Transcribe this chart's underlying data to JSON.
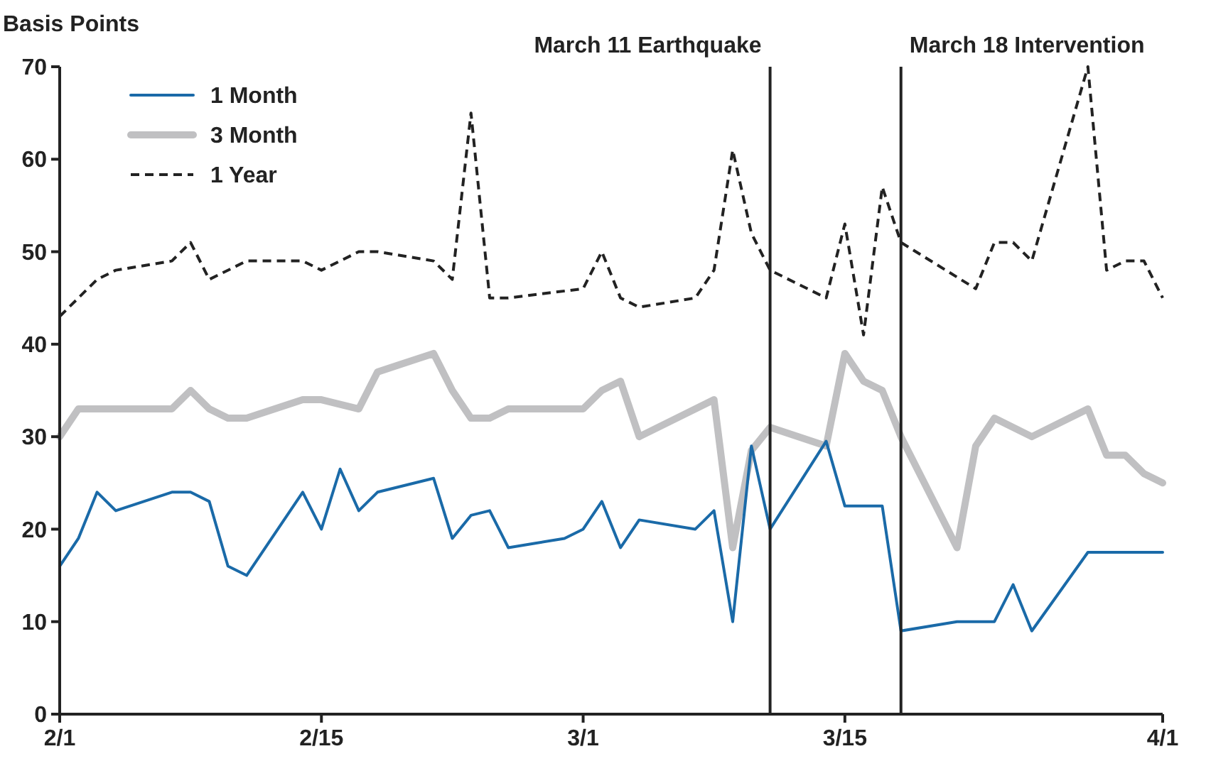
{
  "chart_data": {
    "type": "line",
    "ylabel": "Basis Points",
    "ylim": [
      0,
      70
    ],
    "yticks": [
      0,
      10,
      20,
      30,
      40,
      50,
      60,
      70
    ],
    "xlim": [
      "--02-01",
      "--04-01"
    ],
    "xticks": [
      {
        "value": "--02-01",
        "label": "2/1"
      },
      {
        "value": "--02-15",
        "label": "2/15"
      },
      {
        "value": "--03-01",
        "label": "3/1"
      },
      {
        "value": "--03-15",
        "label": "3/15"
      },
      {
        "value": "--04-01",
        "label": "4/1"
      }
    ],
    "grid": false,
    "legend": "top left",
    "marker": "none",
    "ref_lines": [
      {
        "axis": "x",
        "value": "--03-11",
        "label": "March 11 Earthquake",
        "color": "#222222"
      },
      {
        "axis": "x",
        "value": "--03-18",
        "label": "March 18 Intervention",
        "color": "#222222"
      }
    ],
    "series": [
      {
        "name": "1 Month",
        "color": "#1a6aa8",
        "line_style": "solid",
        "x": [
          "--02-01",
          "--02-02",
          "--02-03",
          "--02-04",
          "--02-07",
          "--02-08",
          "--02-09",
          "--02-10",
          "--02-11",
          "--02-14",
          "--02-15",
          "--02-16",
          "--02-17",
          "--02-18",
          "--02-21",
          "--02-22",
          "--02-23",
          "--02-24",
          "--02-25",
          "--02-28",
          "--03-01",
          "--03-02",
          "--03-03",
          "--03-04",
          "--03-07",
          "--03-08",
          "--03-09",
          "--03-10",
          "--03-11",
          "--03-14",
          "--03-15",
          "--03-16",
          "--03-17",
          "--03-18",
          "--03-21",
          "--03-23",
          "--03-24",
          "--03-25",
          "--03-28",
          "--04-01"
        ],
        "values": [
          16,
          19,
          24,
          22,
          24,
          24,
          23,
          16,
          15,
          24,
          20,
          26.5,
          22,
          24,
          25.5,
          19,
          21.5,
          22,
          18,
          19,
          20,
          23,
          18,
          21,
          20,
          22,
          10,
          29,
          20,
          29.5,
          22.5,
          22.5,
          22.5,
          9,
          10,
          10,
          14,
          9,
          17.5,
          17.5
        ]
      },
      {
        "name": "3 Month",
        "color": "#c0c0c2",
        "line_style": "solid",
        "x": [
          "--02-01",
          "--02-02",
          "--02-07",
          "--02-08",
          "--02-09",
          "--02-10",
          "--02-11",
          "--02-14",
          "--02-15",
          "--02-17",
          "--02-18",
          "--02-21",
          "--02-22",
          "--02-23",
          "--02-24",
          "--02-25",
          "--03-01",
          "--03-02",
          "--03-03",
          "--03-04",
          "--03-08",
          "--03-09",
          "--03-10",
          "--03-11",
          "--03-14",
          "--03-15",
          "--03-16",
          "--03-17",
          "--03-18",
          "--03-21",
          "--03-22",
          "--03-23",
          "--03-25",
          "--03-28",
          "--03-29",
          "--03-30",
          "--03-31",
          "--04-01"
        ],
        "values": [
          30,
          33,
          33,
          35,
          33,
          32,
          32,
          34,
          34,
          33,
          37,
          39,
          35,
          32,
          32,
          33,
          33,
          35,
          36,
          30,
          34,
          18,
          28.5,
          31,
          29,
          39,
          36,
          35,
          30,
          18,
          29,
          32,
          30,
          33,
          28,
          28,
          26,
          25
        ]
      },
      {
        "name": "1 Year",
        "color": "#222222",
        "line_style": "dashed",
        "x": [
          "--02-01",
          "--02-02",
          "--02-03",
          "--02-04",
          "--02-07",
          "--02-08",
          "--02-09",
          "--02-11",
          "--02-14",
          "--02-15",
          "--02-17",
          "--02-18",
          "--02-21",
          "--02-22",
          "--02-23",
          "--02-24",
          "--02-25",
          "--03-01",
          "--03-02",
          "--03-03",
          "--03-04",
          "--03-07",
          "--03-08",
          "--03-09",
          "--03-10",
          "--03-11",
          "--03-14",
          "--03-15",
          "--03-16",
          "--03-17",
          "--03-18",
          "--03-22",
          "--03-23",
          "--03-24",
          "--03-25",
          "--03-28",
          "--03-29",
          "--03-30",
          "--03-31",
          "--04-01"
        ],
        "values": [
          43,
          45,
          47,
          48,
          49,
          51,
          47,
          49,
          49,
          48,
          50,
          50,
          49,
          47,
          65,
          45,
          45,
          46,
          50,
          45,
          44,
          45,
          48,
          61,
          52,
          48,
          45,
          53,
          41,
          57,
          51,
          46,
          51,
          51,
          49,
          70,
          48,
          49,
          49,
          45
        ]
      }
    ]
  }
}
